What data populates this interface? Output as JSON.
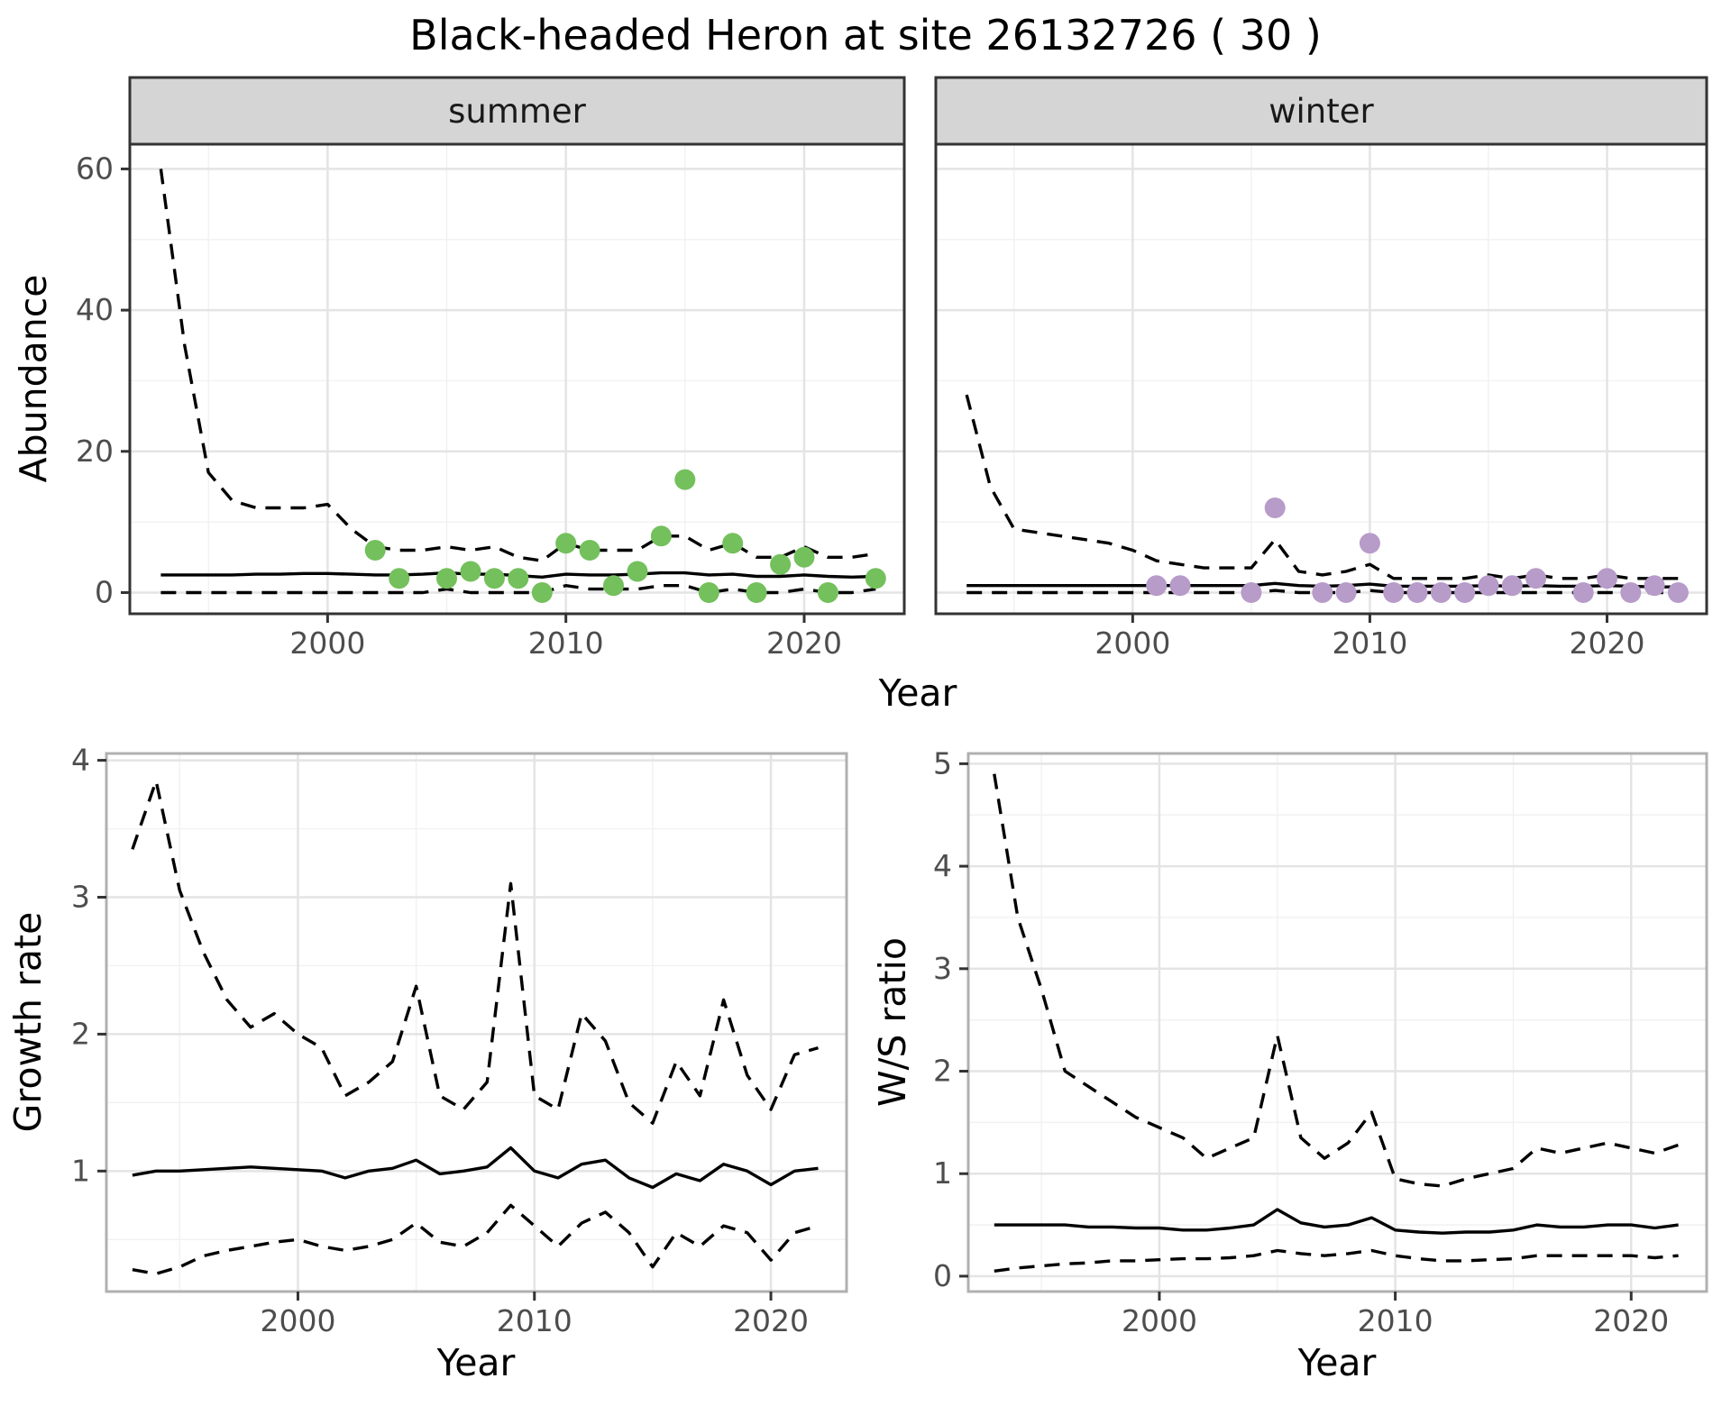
{
  "title": "Black-headed Heron at site 26132726 ( 30 )",
  "colors": {
    "line": "#000000",
    "summer_point": "#73c05c",
    "winter_point": "#b79bc9",
    "strip_bg": "#d5d5d5",
    "grid_major": "#e4e4e4",
    "grid_minor": "#f1f1f1",
    "tick_label": "#4d4d4d"
  },
  "chart_data": [
    {
      "type": "line",
      "name": "abundance_summer",
      "facet_label": "summer",
      "xlabel": "Year",
      "ylabel": "Abundance",
      "xlim": [
        1991.7,
        2024.2
      ],
      "ylim": [
        -3,
        63.5
      ],
      "xticks": [
        2000,
        2010,
        2020
      ],
      "yticks": [
        0,
        20,
        40,
        60
      ],
      "x_years": [
        1993,
        1994,
        1995,
        1996,
        1997,
        1998,
        1999,
        2000,
        2001,
        2002,
        2003,
        2004,
        2005,
        2006,
        2007,
        2008,
        2009,
        2010,
        2011,
        2012,
        2013,
        2014,
        2015,
        2016,
        2017,
        2018,
        2019,
        2020,
        2021,
        2022,
        2023
      ],
      "series": [
        {
          "name": "upper_ci",
          "style": "dashed",
          "y": [
            60,
            35,
            17,
            13,
            12,
            12,
            12,
            12.5,
            9,
            6.5,
            6,
            6,
            6.5,
            6,
            6.5,
            5,
            4.5,
            7,
            6,
            6,
            6,
            8,
            8,
            6,
            7,
            5,
            5,
            6.5,
            5,
            5,
            5.5
          ]
        },
        {
          "name": "median",
          "style": "solid",
          "y": [
            2.5,
            2.5,
            2.5,
            2.5,
            2.6,
            2.6,
            2.7,
            2.7,
            2.6,
            2.5,
            2.5,
            2.6,
            2.8,
            2.6,
            2.6,
            2.4,
            2.2,
            2.6,
            2.5,
            2.5,
            2.6,
            2.8,
            2.8,
            2.5,
            2.6,
            2.3,
            2.3,
            2.5,
            2.3,
            2.2,
            2.3
          ]
        },
        {
          "name": "lower_ci",
          "style": "dashed",
          "y": [
            0,
            0,
            0,
            0,
            0,
            0,
            0,
            0,
            0,
            0,
            0,
            0,
            0.5,
            0,
            0,
            0,
            0,
            1,
            0.5,
            0.5,
            0.5,
            1,
            1,
            0,
            0.5,
            0,
            0,
            0.5,
            0,
            0,
            0.5
          ]
        },
        {
          "name": "observations",
          "style": "points",
          "color": "#73c05c",
          "x": [
            2002,
            2003,
            2005,
            2006,
            2007,
            2008,
            2009,
            2010,
            2011,
            2012,
            2013,
            2014,
            2015,
            2016,
            2017,
            2018,
            2019,
            2020,
            2021,
            2023
          ],
          "y": [
            6,
            2,
            2,
            3,
            2,
            2,
            0,
            7,
            6,
            1,
            3,
            8,
            16,
            0,
            7,
            0,
            4,
            5,
            0,
            2
          ]
        }
      ]
    },
    {
      "type": "line",
      "name": "abundance_winter",
      "facet_label": "winter",
      "xlabel": "Year",
      "ylabel": "",
      "xlim": [
        1991.7,
        2024.2
      ],
      "ylim": [
        -3,
        63.5
      ],
      "xticks": [
        2000,
        2010,
        2020
      ],
      "yticks": [
        0,
        20,
        40,
        60
      ],
      "x_years": [
        1993,
        1994,
        1995,
        1996,
        1997,
        1998,
        1999,
        2000,
        2001,
        2002,
        2003,
        2004,
        2005,
        2006,
        2007,
        2008,
        2009,
        2010,
        2011,
        2012,
        2013,
        2014,
        2015,
        2016,
        2017,
        2018,
        2019,
        2020,
        2021,
        2022,
        2023
      ],
      "series": [
        {
          "name": "upper_ci",
          "style": "dashed",
          "y": [
            28,
            15,
            9,
            8.5,
            8,
            7.5,
            7,
            6,
            4.5,
            4,
            3.5,
            3.5,
            3.5,
            7.5,
            3,
            2.5,
            3,
            4,
            2,
            2,
            2,
            2,
            2.5,
            2,
            2.5,
            2,
            2,
            2.5,
            2,
            2,
            2
          ]
        },
        {
          "name": "median",
          "style": "solid",
          "y": [
            1,
            1,
            1,
            1,
            1,
            1,
            1,
            1,
            1,
            1,
            1,
            1,
            1,
            1.3,
            1,
            0.9,
            1,
            1.2,
            0.9,
            0.9,
            0.9,
            0.9,
            1,
            0.9,
            1,
            0.9,
            0.9,
            1,
            0.9,
            0.8,
            0.8
          ]
        },
        {
          "name": "lower_ci",
          "style": "dashed",
          "y": [
            0,
            0,
            0,
            0,
            0,
            0,
            0,
            0,
            0,
            0,
            0,
            0,
            0,
            0.3,
            0,
            0,
            0,
            0.3,
            0,
            0,
            0,
            0,
            0,
            0,
            0,
            0,
            0,
            0,
            0,
            0,
            0
          ]
        },
        {
          "name": "observations",
          "style": "points",
          "color": "#b79bc9",
          "x": [
            2001,
            2002,
            2005,
            2006,
            2008,
            2009,
            2010,
            2011,
            2012,
            2013,
            2014,
            2015,
            2016,
            2017,
            2019,
            2020,
            2021,
            2022,
            2023
          ],
          "y": [
            1,
            1,
            0,
            12,
            0,
            0,
            7,
            0,
            0,
            0,
            0,
            1,
            1,
            2,
            0,
            2,
            0,
            1,
            0
          ]
        }
      ]
    },
    {
      "type": "line",
      "name": "growth_rate",
      "facet_label": "",
      "xlabel": "Year",
      "ylabel": "Growth rate",
      "xlim": [
        1991.9,
        2023.2
      ],
      "ylim": [
        0.12,
        4.05
      ],
      "xticks": [
        2000,
        2010,
        2020
      ],
      "yticks": [
        1,
        2,
        3,
        4
      ],
      "x_years": [
        1993,
        1994,
        1995,
        1996,
        1997,
        1998,
        1999,
        2000,
        2001,
        2002,
        2003,
        2004,
        2005,
        2006,
        2007,
        2008,
        2009,
        2010,
        2011,
        2012,
        2013,
        2014,
        2015,
        2016,
        2017,
        2018,
        2019,
        2020,
        2021,
        2022
      ],
      "series": [
        {
          "name": "upper_ci",
          "style": "dashed",
          "y": [
            3.35,
            3.85,
            3.05,
            2.6,
            2.25,
            2.05,
            2.15,
            2.0,
            1.9,
            1.55,
            1.65,
            1.8,
            2.35,
            1.55,
            1.45,
            1.65,
            3.1,
            1.55,
            1.45,
            2.15,
            1.95,
            1.5,
            1.35,
            1.8,
            1.55,
            2.25,
            1.7,
            1.45,
            1.85,
            1.9
          ]
        },
        {
          "name": "median",
          "style": "solid",
          "y": [
            0.97,
            1.0,
            1.0,
            1.01,
            1.02,
            1.03,
            1.02,
            1.01,
            1.0,
            0.95,
            1.0,
            1.02,
            1.08,
            0.98,
            1.0,
            1.03,
            1.17,
            1.0,
            0.95,
            1.05,
            1.08,
            0.95,
            0.88,
            0.98,
            0.93,
            1.05,
            1.0,
            0.9,
            1.0,
            1.02
          ]
        },
        {
          "name": "lower_ci",
          "style": "dashed",
          "y": [
            0.28,
            0.25,
            0.3,
            0.38,
            0.42,
            0.45,
            0.48,
            0.5,
            0.45,
            0.42,
            0.45,
            0.5,
            0.62,
            0.48,
            0.45,
            0.55,
            0.75,
            0.6,
            0.45,
            0.62,
            0.7,
            0.55,
            0.3,
            0.55,
            0.45,
            0.6,
            0.55,
            0.35,
            0.55,
            0.6
          ]
        }
      ]
    },
    {
      "type": "line",
      "name": "ws_ratio",
      "facet_label": "",
      "xlabel": "Year",
      "ylabel": "W/S ratio",
      "xlim": [
        1991.9,
        2023.2
      ],
      "ylim": [
        -0.15,
        5.1
      ],
      "xticks": [
        2000,
        2010,
        2020
      ],
      "yticks": [
        0,
        1,
        2,
        3,
        4,
        5
      ],
      "x_years": [
        1993,
        1994,
        1995,
        1996,
        1997,
        1998,
        1999,
        2000,
        2001,
        2002,
        2003,
        2004,
        2005,
        2006,
        2007,
        2008,
        2009,
        2010,
        2011,
        2012,
        2013,
        2014,
        2015,
        2016,
        2017,
        2018,
        2019,
        2020,
        2021,
        2022
      ],
      "series": [
        {
          "name": "upper_ci",
          "style": "dashed",
          "y": [
            4.9,
            3.5,
            2.8,
            2.0,
            1.85,
            1.7,
            1.55,
            1.45,
            1.35,
            1.15,
            1.25,
            1.35,
            2.35,
            1.35,
            1.15,
            1.3,
            1.6,
            0.95,
            0.9,
            0.88,
            0.95,
            1.0,
            1.05,
            1.25,
            1.2,
            1.25,
            1.3,
            1.25,
            1.2,
            1.28
          ]
        },
        {
          "name": "median",
          "style": "solid",
          "y": [
            0.5,
            0.5,
            0.5,
            0.5,
            0.48,
            0.48,
            0.47,
            0.47,
            0.45,
            0.45,
            0.47,
            0.5,
            0.65,
            0.52,
            0.48,
            0.5,
            0.57,
            0.45,
            0.43,
            0.42,
            0.43,
            0.43,
            0.45,
            0.5,
            0.48,
            0.48,
            0.5,
            0.5,
            0.47,
            0.5
          ]
        },
        {
          "name": "lower_ci",
          "style": "dashed",
          "y": [
            0.05,
            0.08,
            0.1,
            0.12,
            0.13,
            0.15,
            0.15,
            0.16,
            0.17,
            0.17,
            0.18,
            0.2,
            0.25,
            0.22,
            0.2,
            0.22,
            0.25,
            0.2,
            0.17,
            0.15,
            0.15,
            0.16,
            0.17,
            0.2,
            0.2,
            0.2,
            0.2,
            0.2,
            0.18,
            0.2
          ]
        }
      ]
    }
  ]
}
